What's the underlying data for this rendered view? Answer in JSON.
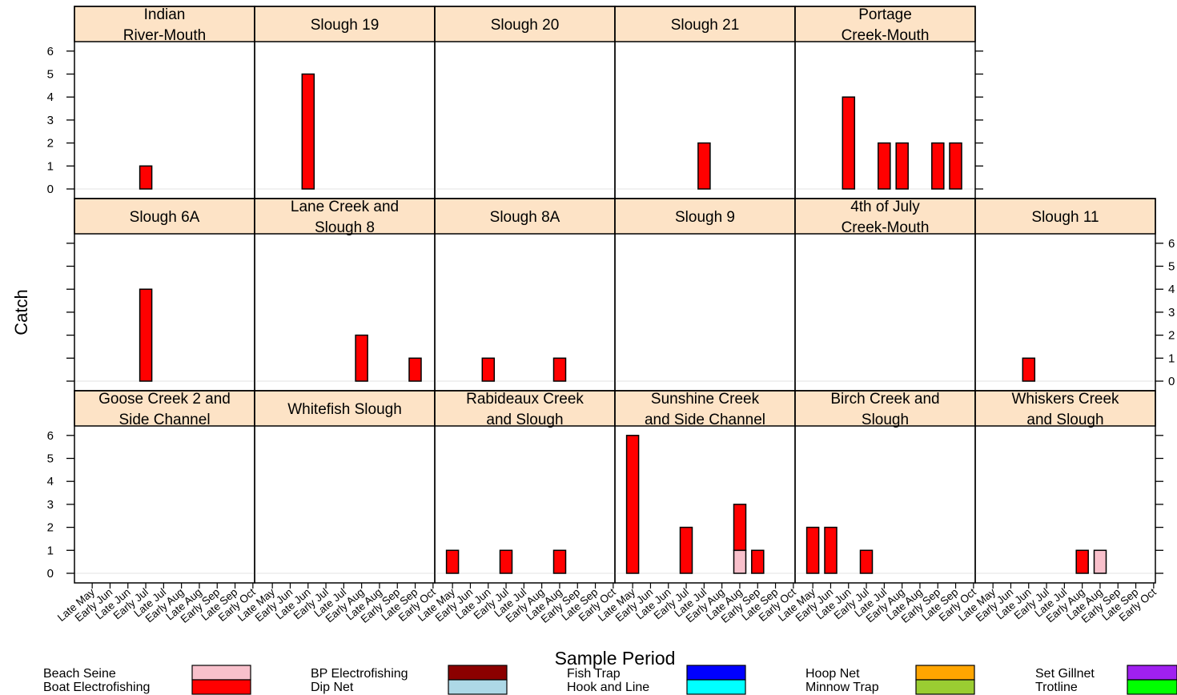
{
  "chart_data": {
    "type": "bar",
    "layout": "trellis 3 rows x 6 panels",
    "ylabel": "Catch",
    "xlabel": "Sample Period",
    "ylim": [
      0,
      6
    ],
    "y_ticks": [
      0,
      1,
      2,
      3,
      4,
      5,
      6
    ],
    "stacked": true,
    "categories": [
      "Late May",
      "Early Jun",
      "Late Jun",
      "Early Jul",
      "Late Jul",
      "Early Aug",
      "Late Aug",
      "Early Sep",
      "Late Sep",
      "Early Oct"
    ],
    "colors": {
      "strip": "#fde3c6",
      "Beach Seine": "#f8c0cb",
      "Boat Electrofishing": "#ff0000",
      "BP Electrofishing": "#8b0000",
      "Dip Net": "#add8e6",
      "Fish Trap": "#0000ff",
      "Hook and Line": "#00ffff",
      "Hoop Net": "#ffa500",
      "Minnow Trap": "#9acd32",
      "Set Gillnet": "#a020f0",
      "Trotline": "#00ff00"
    },
    "legend": [
      {
        "top": "Beach Seine",
        "bottom": "Boat Electrofishing"
      },
      {
        "top": "BP Electrofishing",
        "bottom": "Dip Net"
      },
      {
        "top": "Fish Trap",
        "bottom": "Hook and Line"
      },
      {
        "top": "Hoop Net",
        "bottom": "Minnow Trap"
      },
      {
        "top": "Set Gillnet",
        "bottom": "Trotline"
      }
    ],
    "panels": [
      {
        "row": 0,
        "col": 0,
        "title": [
          "Indian",
          "River-Mouth"
        ],
        "bars": [
          {
            "cat": 3,
            "segments": [
              {
                "method": "Boat Electrofishing",
                "value": 1
              }
            ]
          }
        ]
      },
      {
        "row": 0,
        "col": 1,
        "title": [
          "Slough 19"
        ],
        "bars": [
          {
            "cat": 2,
            "segments": [
              {
                "method": "Boat Electrofishing",
                "value": 5
              }
            ]
          }
        ]
      },
      {
        "row": 0,
        "col": 2,
        "title": [
          "Slough 20"
        ],
        "bars": []
      },
      {
        "row": 0,
        "col": 3,
        "title": [
          "Slough 21"
        ],
        "bars": [
          {
            "cat": 4,
            "segments": [
              {
                "method": "Boat Electrofishing",
                "value": 2
              }
            ]
          }
        ]
      },
      {
        "row": 0,
        "col": 4,
        "title": [
          "Portage",
          "Creek-Mouth"
        ],
        "bars": [
          {
            "cat": 2,
            "segments": [
              {
                "method": "Boat Electrofishing",
                "value": 4
              }
            ]
          },
          {
            "cat": 4,
            "segments": [
              {
                "method": "Boat Electrofishing",
                "value": 2
              }
            ]
          },
          {
            "cat": 5,
            "segments": [
              {
                "method": "Boat Electrofishing",
                "value": 2
              }
            ]
          },
          {
            "cat": 7,
            "segments": [
              {
                "method": "Boat Electrofishing",
                "value": 2
              }
            ]
          },
          {
            "cat": 8,
            "segments": [
              {
                "method": "Boat Electrofishing",
                "value": 2
              }
            ]
          }
        ]
      },
      {
        "row": 1,
        "col": 0,
        "title": [
          "Slough 6A"
        ],
        "bars": [
          {
            "cat": 3,
            "segments": [
              {
                "method": "Boat Electrofishing",
                "value": 4
              }
            ]
          }
        ]
      },
      {
        "row": 1,
        "col": 1,
        "title": [
          "Lane Creek and",
          "Slough 8"
        ],
        "bars": [
          {
            "cat": 5,
            "segments": [
              {
                "method": "Boat Electrofishing",
                "value": 2
              }
            ]
          },
          {
            "cat": 8,
            "segments": [
              {
                "method": "Boat Electrofishing",
                "value": 1
              }
            ]
          }
        ]
      },
      {
        "row": 1,
        "col": 2,
        "title": [
          "Slough 8A"
        ],
        "bars": [
          {
            "cat": 2,
            "segments": [
              {
                "method": "Boat Electrofishing",
                "value": 1
              }
            ]
          },
          {
            "cat": 6,
            "segments": [
              {
                "method": "Boat Electrofishing",
                "value": 1
              }
            ]
          }
        ]
      },
      {
        "row": 1,
        "col": 3,
        "title": [
          "Slough 9"
        ],
        "bars": []
      },
      {
        "row": 1,
        "col": 4,
        "title": [
          "4th of July",
          "Creek-Mouth"
        ],
        "bars": []
      },
      {
        "row": 1,
        "col": 5,
        "title": [
          "Slough 11"
        ],
        "bars": [
          {
            "cat": 2,
            "segments": [
              {
                "method": "Boat Electrofishing",
                "value": 1
              }
            ]
          }
        ]
      },
      {
        "row": 2,
        "col": 0,
        "title": [
          "Goose Creek 2 and",
          "Side Channel"
        ],
        "bars": []
      },
      {
        "row": 2,
        "col": 1,
        "title": [
          "Whitefish Slough"
        ],
        "bars": []
      },
      {
        "row": 2,
        "col": 2,
        "title": [
          "Rabideaux Creek",
          "and Slough"
        ],
        "bars": [
          {
            "cat": 0,
            "segments": [
              {
                "method": "Boat Electrofishing",
                "value": 1
              }
            ]
          },
          {
            "cat": 3,
            "segments": [
              {
                "method": "Boat Electrofishing",
                "value": 1
              }
            ]
          },
          {
            "cat": 6,
            "segments": [
              {
                "method": "Boat Electrofishing",
                "value": 1
              }
            ]
          }
        ]
      },
      {
        "row": 2,
        "col": 3,
        "title": [
          "Sunshine Creek",
          "and Side Channel"
        ],
        "bars": [
          {
            "cat": 0,
            "segments": [
              {
                "method": "Boat Electrofishing",
                "value": 6
              }
            ]
          },
          {
            "cat": 3,
            "segments": [
              {
                "method": "Boat Electrofishing",
                "value": 2
              }
            ]
          },
          {
            "cat": 6,
            "segments": [
              {
                "method": "Beach Seine",
                "value": 1
              },
              {
                "method": "Boat Electrofishing",
                "value": 2
              }
            ]
          },
          {
            "cat": 7,
            "segments": [
              {
                "method": "Boat Electrofishing",
                "value": 1
              }
            ]
          }
        ]
      },
      {
        "row": 2,
        "col": 4,
        "title": [
          "Birch Creek and",
          "Slough"
        ],
        "bars": [
          {
            "cat": 0,
            "segments": [
              {
                "method": "Boat Electrofishing",
                "value": 2
              }
            ]
          },
          {
            "cat": 1,
            "segments": [
              {
                "method": "Boat Electrofishing",
                "value": 2
              }
            ]
          },
          {
            "cat": 3,
            "segments": [
              {
                "method": "Boat Electrofishing",
                "value": 1
              }
            ]
          }
        ]
      },
      {
        "row": 2,
        "col": 5,
        "title": [
          "Whiskers Creek",
          "and Slough"
        ],
        "bars": [
          {
            "cat": 5,
            "segments": [
              {
                "method": "Boat Electrofishing",
                "value": 1
              }
            ]
          },
          {
            "cat": 6,
            "segments": [
              {
                "method": "Beach Seine",
                "value": 1
              }
            ]
          }
        ]
      }
    ]
  }
}
